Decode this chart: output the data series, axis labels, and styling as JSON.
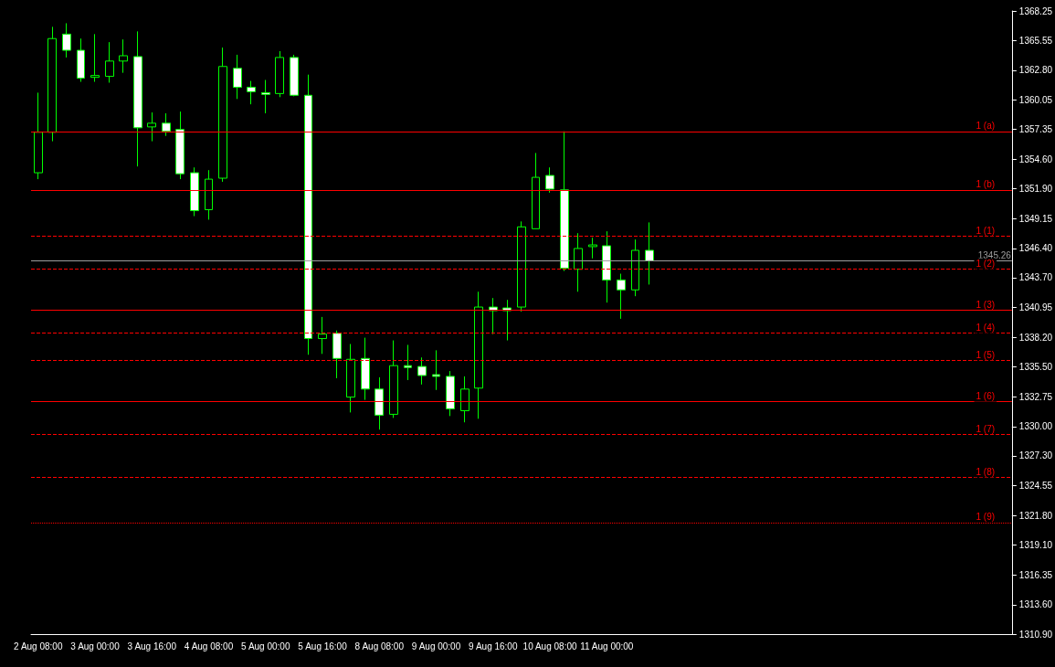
{
  "chart_data": {
    "type": "candlestick",
    "categories": [
      "2 Aug 08:00",
      null,
      null,
      null,
      "3 Aug 00:00",
      null,
      null,
      null,
      "3 Aug 16:00",
      null,
      null,
      null,
      "4 Aug 08:00",
      null,
      null,
      null,
      "5 Aug 00:00",
      null,
      null,
      null,
      "5 Aug 16:00",
      null,
      null,
      null,
      "8 Aug 08:00",
      null,
      null,
      null,
      "9 Aug 00:00",
      null,
      null,
      null,
      "9 Aug 16:00",
      null,
      null,
      null,
      "10 Aug 08:00",
      null,
      null,
      null,
      "11 Aug 00:00",
      null,
      null,
      null,
      null,
      null,
      null,
      null,
      null,
      null,
      null,
      null,
      null,
      null,
      null,
      null,
      null,
      null,
      null,
      null,
      null,
      null,
      null,
      null,
      null,
      null,
      null,
      null,
      null
    ],
    "series": [
      {
        "color": "#00ff00",
        "colors": [
          "#000000",
          "#000000",
          "#ffffff",
          "#ffffff",
          "#000000",
          "#000000",
          "#000000",
          "#ffffff",
          "#000000",
          "#ffffff",
          "#ffffff",
          "#ffffff",
          "#000000",
          "#000000",
          "#ffffff",
          "#ffffff",
          "#ffffff",
          "#000000",
          "#ffffff",
          "#ffffff",
          "#000000",
          "#ffffff",
          "#000000",
          "#ffffff",
          "#ffffff",
          "#000000",
          "#ffffff",
          "#ffffff",
          "#ffffff",
          "#ffffff",
          "#000000",
          "#000000",
          "#ffffff",
          "#ffffff",
          "#000000",
          "#000000",
          "#ffffff",
          "#ffffff",
          "#000000",
          "#000000",
          "#ffffff",
          "#ffffff",
          "#000000",
          "#ffffff",
          null,
          null,
          null,
          null,
          null,
          null,
          null,
          null,
          null,
          null,
          null,
          null,
          null,
          null,
          null,
          null,
          null,
          null,
          null,
          null,
          null,
          null,
          null,
          null,
          null
        ],
        "ohlc": [
          [
            1353.36,
            1360.73,
            1352.77,
            1357.09
          ],
          [
            1357.09,
            1366.79,
            1356.26,
            1365.71
          ],
          [
            1366.12,
            1367.12,
            1363.97,
            1364.63
          ],
          [
            1364.63,
            1365.71,
            1361.73,
            1362.06
          ],
          [
            1362.14,
            1366.12,
            1361.73,
            1362.31
          ],
          [
            1362.23,
            1365.38,
            1361.65,
            1363.64
          ],
          [
            1363.64,
            1365.63,
            1362.56,
            1364.13
          ],
          [
            1364.05,
            1366.37,
            1353.94,
            1357.5
          ],
          [
            1357.58,
            1358.91,
            1356.26,
            1357.92
          ],
          [
            1357.92,
            1358.83,
            1356.75,
            1357.17
          ],
          [
            1357.34,
            1358.99,
            1352.77,
            1353.27
          ],
          [
            1353.36,
            1353.85,
            1349.37,
            1349.87
          ],
          [
            1349.96,
            1353.6,
            1349.04,
            1352.77
          ],
          [
            1352.86,
            1364.88,
            1352.53,
            1363.14
          ],
          [
            1362.97,
            1364.22,
            1360.15,
            1361.23
          ],
          [
            1361.23,
            1361.81,
            1359.66,
            1360.82
          ],
          [
            1360.73,
            1361.9,
            1358.83,
            1360.57
          ],
          [
            1360.65,
            1364.55,
            1360.32,
            1363.97
          ],
          [
            1363.97,
            1364.22,
            1360.4,
            1360.49
          ],
          [
            1360.49,
            1362.39,
            1336.61,
            1338.1
          ],
          [
            1338.1,
            1340.09,
            1336.69,
            1338.51
          ],
          [
            1338.59,
            1338.84,
            1334.45,
            1336.27
          ],
          [
            1332.71,
            1337.6,
            1331.3,
            1336.19
          ],
          [
            1336.27,
            1338.18,
            1332.46,
            1333.45
          ],
          [
            1333.45,
            1334.53,
            1329.72,
            1331.05
          ],
          [
            1331.13,
            1337.93,
            1330.8,
            1335.61
          ],
          [
            1335.61,
            1337.52,
            1334.28,
            1335.44
          ],
          [
            1335.53,
            1336.36,
            1333.87,
            1334.7
          ],
          [
            1334.78,
            1337.02,
            1333.37,
            1334.62
          ],
          [
            1334.62,
            1335.11,
            1330.97,
            1331.63
          ],
          [
            1331.46,
            1334.62,
            1330.39,
            1333.45
          ],
          [
            1333.54,
            1342.41,
            1330.72,
            1341.0
          ],
          [
            1341.0,
            1341.83,
            1338.51,
            1340.67
          ],
          [
            1340.92,
            1341.66,
            1337.93,
            1340.67
          ],
          [
            1341.0,
            1348.88,
            1340.59,
            1348.38
          ],
          [
            1348.21,
            1355.18,
            1348.21,
            1352.94
          ],
          [
            1353.11,
            1353.85,
            1351.53,
            1351.86
          ],
          [
            1351.78,
            1357.17,
            1344.32,
            1344.57
          ],
          [
            1344.48,
            1347.8,
            1342.41,
            1346.39
          ],
          [
            1346.56,
            1347.38,
            1345.48,
            1346.72
          ],
          [
            1346.64,
            1347.97,
            1341.41,
            1343.49
          ],
          [
            1343.49,
            1344.07,
            1339.92,
            1342.58
          ],
          [
            1342.58,
            1347.22,
            1342.0,
            1346.22
          ],
          [
            1346.22,
            1348.79,
            1343.07,
            1345.26
          ],
          null,
          null,
          null,
          null,
          null,
          null,
          null,
          null,
          null,
          null,
          null,
          null,
          null,
          null,
          null,
          null,
          null,
          null,
          null,
          null,
          null,
          null,
          null,
          null,
          null
        ]
      }
    ],
    "ylim": [
      1310.9,
      1368.25
    ],
    "yticks": [
      {
        "value": 1310.9,
        "label": "1310.90"
      },
      {
        "value": 1313.6,
        "label": "1313.60"
      },
      1316.35,
      {
        "value": 1319.1,
        "label": "1319.10"
      },
      {
        "value": 1321.8,
        "label": "1321.80"
      },
      1324.55,
      {
        "value": 1327.3,
        "label": "1327.30"
      },
      {
        "value": 1330,
        "label": "1330.00"
      },
      1332.75,
      {
        "value": 1335.5,
        "label": "1335.50"
      },
      {
        "value": 1338.2,
        "label": "1338.20"
      },
      1340.95,
      {
        "value": 1343.7,
        "label": "1343.70"
      },
      {
        "value": 1346.4,
        "label": "1346.40"
      },
      1349.15,
      {
        "value": 1351.9,
        "label": "1351.90"
      },
      {
        "value": 1354.6,
        "label": "1354.60"
      },
      1357.35,
      1360.05,
      {
        "value": 1362.8,
        "label": "1362.80"
      },
      1365.55,
      1368.25
    ],
    "ref_lines": [
      {
        "axis": "y",
        "value": 1357.17,
        "color": "#ff0000",
        "line_style": "solid"
      },
      {
        "axis": "y",
        "value": 1351.78,
        "color": "#ff0000",
        "line_style": "solid"
      },
      {
        "axis": "y",
        "value": 1347.55,
        "color": "#ff0000",
        "line_style": "dashed"
      },
      {
        "axis": "y",
        "value": 1345.26,
        "label": "1345.26",
        "color": "#9e9e9e",
        "line_style": "solid"
      },
      {
        "axis": "y",
        "value": 1344.48,
        "color": "#ff0000",
        "line_style": "dashed"
      },
      {
        "axis": "y",
        "value": 1340.75,
        "color": "#ff0000",
        "line_style": "solid"
      },
      {
        "axis": "y",
        "value": 1338.59,
        "color": "#ff0000",
        "line_style": "dashed"
      },
      {
        "axis": "y",
        "value": 1336.11,
        "color": "#ff0000",
        "line_style": "dashed"
      },
      {
        "axis": "y",
        "value": 1332.29,
        "color": "#ff0000",
        "line_style": "solid"
      },
      {
        "axis": "y",
        "value": 1329.31,
        "color": "#ff0000",
        "line_style": "dashed"
      },
      {
        "axis": "y",
        "value": 1325.33,
        "color": "#ff0000",
        "line_style": "dashed"
      },
      {
        "axis": "y",
        "value": 1321.18,
        "color": "#ff0000",
        "line_style": "dotted"
      }
    ],
    "annotations": [
      {
        "text": "1 (a)",
        "y": 1357.17
      },
      {
        "text": "1 (b)",
        "y": 1351.78
      },
      {
        "text": "1 (1)",
        "y": 1347.55
      },
      {
        "text": "1 (2)",
        "y": 1344.48
      },
      {
        "text": "1 (3)",
        "y": 1340.75
      },
      {
        "text": "1 (4)",
        "y": 1338.59
      },
      {
        "text": "1 (5)",
        "y": 1336.11
      },
      {
        "text": "1 (6)",
        "y": 1332.29
      },
      {
        "text": "1 (7)",
        "y": 1329.31
      },
      {
        "text": "1 (8)",
        "y": 1325.33
      },
      {
        "text": "1 (9)",
        "y": 1321.18
      }
    ],
    "grid": false
  }
}
